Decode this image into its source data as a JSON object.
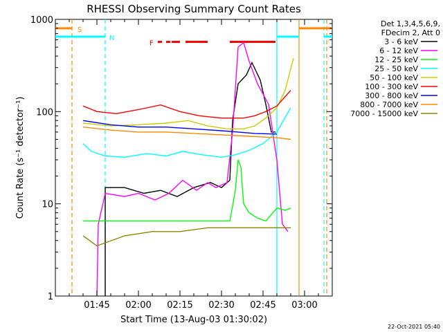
{
  "chart_data": {
    "type": "line",
    "title": "RHESSI Observing Summary Count Rates",
    "xlabel": "Start Time (13-Aug-03 01:30:02)",
    "ylabel": "Count Rate (s⁻¹ detector⁻¹)",
    "yscale": "log",
    "ylim": [
      1,
      1000
    ],
    "xlim_minutes": [
      0,
      100
    ],
    "y_tick_labels": [
      "1",
      "10",
      "100",
      "1000"
    ],
    "x_tick_labels": [
      "01:45",
      "02:00",
      "02:15",
      "02:30",
      "02:45",
      "03:00"
    ],
    "x_tick_minutes": [
      15,
      30,
      45,
      60,
      75,
      90
    ],
    "legend": {
      "placement": "right",
      "header": [
        "Det 1,3,4,5,6,9,",
        "FDecim 2, Att 0"
      ],
      "entries": [
        {
          "label": "3 - 6 keV",
          "color": "#000000"
        },
        {
          "label": "6 - 12 keV",
          "color": "#ff00ff"
        },
        {
          "label": "12 - 25 keV",
          "color": "#00ff00"
        },
        {
          "label": "25 - 50 keV",
          "color": "#00ffff"
        },
        {
          "label": "50 - 100 keV",
          "color": "#cccc00"
        },
        {
          "label": "100 - 300 keV",
          "color": "#ff0000"
        },
        {
          "label": "300 - 800 keV",
          "color": "#0000ff"
        },
        {
          "label": "800 - 7000 keV",
          "color": "#ff8800"
        },
        {
          "label": "7000 - 15000 keV",
          "color": "#888800"
        }
      ]
    },
    "flags": {
      "s_label": "S",
      "n_label": "N",
      "f_label": "F"
    },
    "series": [
      {
        "band": "3-6",
        "color": "#000000",
        "points": [
          [
            18,
            1
          ],
          [
            18,
            15
          ],
          [
            25,
            15
          ],
          [
            32,
            13
          ],
          [
            38,
            14
          ],
          [
            44,
            12
          ],
          [
            50,
            15
          ],
          [
            56,
            17
          ],
          [
            60,
            15
          ],
          [
            63,
            18
          ],
          [
            64,
            80
          ],
          [
            66,
            200
          ],
          [
            69,
            250
          ],
          [
            71,
            340
          ],
          [
            74,
            220
          ],
          [
            76,
            120
          ],
          [
            78,
            60
          ],
          [
            79.5,
            60
          ]
        ]
      },
      {
        "band": "6-12",
        "color": "#ff00ff",
        "points": [
          [
            15,
            1
          ],
          [
            15.5,
            6
          ],
          [
            18,
            13
          ],
          [
            25,
            12
          ],
          [
            30,
            13
          ],
          [
            36,
            11
          ],
          [
            41,
            13
          ],
          [
            46,
            18
          ],
          [
            51,
            14
          ],
          [
            55,
            17
          ],
          [
            58,
            15
          ],
          [
            62,
            17
          ],
          [
            64,
            60
          ],
          [
            66,
            500
          ],
          [
            68,
            560
          ],
          [
            70,
            350
          ],
          [
            73,
            200
          ],
          [
            77,
            120
          ],
          [
            80,
            30
          ],
          [
            82,
            6
          ],
          [
            84,
            5
          ]
        ]
      },
      {
        "band": "12-25",
        "color": "#00ff00",
        "points": [
          [
            10,
            6.5
          ],
          [
            20,
            6.5
          ],
          [
            35,
            6.5
          ],
          [
            50,
            6.5
          ],
          [
            63,
            6.5
          ],
          [
            65,
            14
          ],
          [
            66,
            30
          ],
          [
            67,
            25
          ],
          [
            68,
            10
          ],
          [
            70,
            8
          ],
          [
            73,
            7
          ],
          [
            76,
            6.5
          ],
          [
            80,
            9
          ],
          [
            83,
            8.5
          ],
          [
            85,
            9
          ]
        ]
      },
      {
        "band": "25-50",
        "color": "#00ffff",
        "points": [
          [
            10,
            45
          ],
          [
            13,
            37
          ],
          [
            18,
            33
          ],
          [
            25,
            32
          ],
          [
            33,
            35
          ],
          [
            40,
            33
          ],
          [
            46,
            37
          ],
          [
            53,
            34
          ],
          [
            60,
            32
          ],
          [
            65,
            34
          ],
          [
            70,
            38
          ],
          [
            75,
            45
          ],
          [
            80,
            60
          ],
          [
            85,
            110
          ]
        ]
      },
      {
        "band": "50-100",
        "color": "#cccc00",
        "points": [
          [
            10,
            75
          ],
          [
            20,
            70
          ],
          [
            30,
            72
          ],
          [
            40,
            75
          ],
          [
            48,
            80
          ],
          [
            55,
            70
          ],
          [
            62,
            65
          ],
          [
            68,
            65
          ],
          [
            72,
            70
          ],
          [
            76,
            85
          ],
          [
            80,
            110
          ],
          [
            83,
            170
          ],
          [
            86,
            380
          ]
        ]
      },
      {
        "band": "100-300",
        "color": "#ff0000",
        "points": [
          [
            10,
            115
          ],
          [
            15,
            100
          ],
          [
            22,
            95
          ],
          [
            30,
            105
          ],
          [
            38,
            118
          ],
          [
            45,
            100
          ],
          [
            52,
            90
          ],
          [
            60,
            85
          ],
          [
            68,
            85
          ],
          [
            72,
            90
          ],
          [
            76,
            100
          ],
          [
            80,
            115
          ],
          [
            85,
            170
          ]
        ]
      },
      {
        "band": "300-800",
        "color": "#0000ff",
        "points": [
          [
            10,
            80
          ],
          [
            20,
            72
          ],
          [
            30,
            68
          ],
          [
            40,
            68
          ],
          [
            50,
            65
          ],
          [
            60,
            62
          ],
          [
            66,
            60
          ],
          [
            72,
            58
          ],
          [
            80,
            57
          ]
        ]
      },
      {
        "band": "800-7000",
        "color": "#ff8800",
        "points": [
          [
            10,
            68
          ],
          [
            20,
            63
          ],
          [
            30,
            60
          ],
          [
            40,
            60
          ],
          [
            50,
            58
          ],
          [
            60,
            56
          ],
          [
            70,
            54
          ],
          [
            80,
            52
          ],
          [
            85,
            50
          ]
        ]
      },
      {
        "band": "7000-15000",
        "color": "#888800",
        "points": [
          [
            10,
            4.5
          ],
          [
            15,
            3.5
          ],
          [
            25,
            4.5
          ],
          [
            35,
            5.0
          ],
          [
            45,
            5.0
          ],
          [
            55,
            5.5
          ],
          [
            65,
            5.5
          ],
          [
            75,
            5.5
          ],
          [
            85,
            5.5
          ]
        ]
      }
    ],
    "vertical_markers": [
      {
        "minute": 6,
        "color": "#ff8800",
        "style": "dashed"
      },
      {
        "minute": 18,
        "color": "#00ffff",
        "style": "dashed"
      },
      {
        "minute": 80,
        "color": "#00ffff",
        "style": "solid"
      },
      {
        "minute": 88,
        "color": "#ff8800",
        "style": "solid"
      },
      {
        "minute": 97,
        "color": "#00ffff",
        "style": "dashed"
      },
      {
        "minute": 98,
        "color": "#ff8800",
        "style": "dashed"
      }
    ],
    "flag_bars": [
      {
        "label_ref": "s",
        "color": "#ff8800",
        "level": 800,
        "segments": [
          [
            0,
            6
          ],
          [
            88,
            100
          ]
        ]
      },
      {
        "label_ref": "n",
        "color": "#00ffff",
        "level": 650,
        "segments": [
          [
            0,
            18
          ],
          [
            80,
            88
          ],
          [
            97,
            100
          ]
        ]
      },
      {
        "label_ref": "f",
        "color": "#ff0000",
        "level": 570,
        "segments": [
          [
            37,
            38.5
          ],
          [
            40,
            41.5
          ],
          [
            42,
            45
          ],
          [
            47,
            55
          ],
          [
            63,
            79.5
          ]
        ]
      }
    ]
  },
  "footer_date": "22-Oct-2021 05:40"
}
